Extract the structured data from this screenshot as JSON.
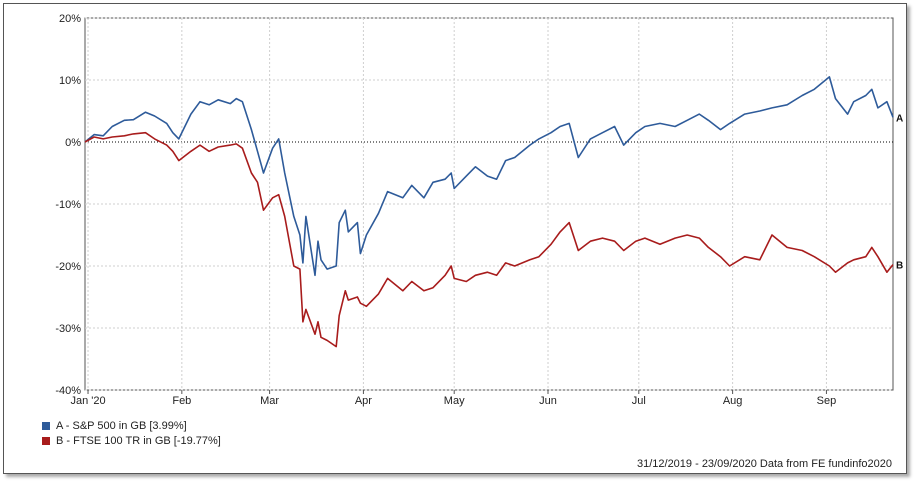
{
  "chart_data": {
    "type": "line",
    "xlabel": "",
    "ylabel": "",
    "ylim": [
      -40,
      20
    ],
    "yticks": [
      20,
      10,
      0,
      -10,
      -20,
      -30,
      -40
    ],
    "ytick_labels": [
      "20%",
      "10%",
      "0%",
      "-10%",
      "-20%",
      "-30%",
      "-40%"
    ],
    "xlim": [
      "2019-12-31",
      "2020-09-23"
    ],
    "xticks": [
      {
        "date": "2020-01-01",
        "label": "Jan '20"
      },
      {
        "date": "2020-02-01",
        "label": "Feb"
      },
      {
        "date": "2020-03-01",
        "label": "Mar"
      },
      {
        "date": "2020-04-01",
        "label": "Apr"
      },
      {
        "date": "2020-05-01",
        "label": "May"
      },
      {
        "date": "2020-06-01",
        "label": "Jun"
      },
      {
        "date": "2020-07-01",
        "label": "Jul"
      },
      {
        "date": "2020-08-01",
        "label": "Aug"
      },
      {
        "date": "2020-09-01",
        "label": "Sep"
      }
    ],
    "grid": true,
    "legend_position": "bottom-left",
    "series": [
      {
        "name": "A - S&P 500 in GB [3.99%]",
        "end_label": "A",
        "color": "#2e5b9a",
        "points": [
          [
            "2019-12-31",
            0
          ],
          [
            "2020-01-03",
            1.2
          ],
          [
            "2020-01-06",
            1.0
          ],
          [
            "2020-01-09",
            2.5
          ],
          [
            "2020-01-13",
            3.5
          ],
          [
            "2020-01-16",
            3.6
          ],
          [
            "2020-01-20",
            4.8
          ],
          [
            "2020-01-23",
            4.2
          ],
          [
            "2020-01-27",
            3.0
          ],
          [
            "2020-01-29",
            1.5
          ],
          [
            "2020-01-31",
            0.5
          ],
          [
            "2020-02-04",
            4.5
          ],
          [
            "2020-02-07",
            6.5
          ],
          [
            "2020-02-10",
            6.0
          ],
          [
            "2020-02-13",
            6.8
          ],
          [
            "2020-02-17",
            6.2
          ],
          [
            "2020-02-19",
            7.0
          ],
          [
            "2020-02-21",
            6.5
          ],
          [
            "2020-02-24",
            2.0
          ],
          [
            "2020-02-26",
            -1.5
          ],
          [
            "2020-02-28",
            -5.0
          ],
          [
            "2020-03-02",
            -1.0
          ],
          [
            "2020-03-04",
            0.5
          ],
          [
            "2020-03-06",
            -5.0
          ],
          [
            "2020-03-09",
            -12.0
          ],
          [
            "2020-03-11",
            -15.0
          ],
          [
            "2020-03-12",
            -19.5
          ],
          [
            "2020-03-13",
            -12.0
          ],
          [
            "2020-03-16",
            -21.5
          ],
          [
            "2020-03-17",
            -16.0
          ],
          [
            "2020-03-18",
            -19.0
          ],
          [
            "2020-03-20",
            -20.5
          ],
          [
            "2020-03-23",
            -20.0
          ],
          [
            "2020-03-24",
            -13.0
          ],
          [
            "2020-03-26",
            -11.0
          ],
          [
            "2020-03-27",
            -14.5
          ],
          [
            "2020-03-30",
            -13.0
          ],
          [
            "2020-03-31",
            -18.0
          ],
          [
            "2020-04-02",
            -15.0
          ],
          [
            "2020-04-06",
            -11.5
          ],
          [
            "2020-04-09",
            -8.0
          ],
          [
            "2020-04-14",
            -9.0
          ],
          [
            "2020-04-17",
            -7.0
          ],
          [
            "2020-04-21",
            -9.0
          ],
          [
            "2020-04-24",
            -6.5
          ],
          [
            "2020-04-28",
            -6.0
          ],
          [
            "2020-04-30",
            -5.0
          ],
          [
            "2020-05-01",
            -7.5
          ],
          [
            "2020-05-05",
            -5.5
          ],
          [
            "2020-05-08",
            -4.0
          ],
          [
            "2020-05-12",
            -5.5
          ],
          [
            "2020-05-15",
            -6.0
          ],
          [
            "2020-05-18",
            -3.0
          ],
          [
            "2020-05-21",
            -2.5
          ],
          [
            "2020-05-26",
            -0.5
          ],
          [
            "2020-05-29",
            0.5
          ],
          [
            "2020-06-02",
            1.5
          ],
          [
            "2020-06-05",
            2.5
          ],
          [
            "2020-06-08",
            3.0
          ],
          [
            "2020-06-11",
            -2.5
          ],
          [
            "2020-06-15",
            0.5
          ],
          [
            "2020-06-19",
            1.5
          ],
          [
            "2020-06-23",
            2.5
          ],
          [
            "2020-06-26",
            -0.5
          ],
          [
            "2020-06-30",
            1.5
          ],
          [
            "2020-07-03",
            2.5
          ],
          [
            "2020-07-08",
            3.0
          ],
          [
            "2020-07-13",
            2.5
          ],
          [
            "2020-07-17",
            3.5
          ],
          [
            "2020-07-21",
            4.5
          ],
          [
            "2020-07-24",
            3.5
          ],
          [
            "2020-07-28",
            2.0
          ],
          [
            "2020-07-31",
            3.0
          ],
          [
            "2020-08-05",
            4.5
          ],
          [
            "2020-08-10",
            5.0
          ],
          [
            "2020-08-14",
            5.5
          ],
          [
            "2020-08-19",
            6.0
          ],
          [
            "2020-08-24",
            7.5
          ],
          [
            "2020-08-28",
            8.5
          ],
          [
            "2020-09-02",
            10.5
          ],
          [
            "2020-09-04",
            7.0
          ],
          [
            "2020-09-08",
            4.5
          ],
          [
            "2020-09-10",
            6.5
          ],
          [
            "2020-09-14",
            7.5
          ],
          [
            "2020-09-16",
            8.5
          ],
          [
            "2020-09-18",
            5.5
          ],
          [
            "2020-09-21",
            6.5
          ],
          [
            "2020-09-23",
            3.99
          ]
        ]
      },
      {
        "name": "B - FTSE 100 TR in GB [-19.77%]",
        "end_label": "B",
        "color": "#a81c1c",
        "points": [
          [
            "2019-12-31",
            0
          ],
          [
            "2020-01-03",
            0.8
          ],
          [
            "2020-01-06",
            0.5
          ],
          [
            "2020-01-09",
            0.8
          ],
          [
            "2020-01-13",
            1.0
          ],
          [
            "2020-01-16",
            1.3
          ],
          [
            "2020-01-20",
            1.5
          ],
          [
            "2020-01-23",
            0.5
          ],
          [
            "2020-01-27",
            -0.5
          ],
          [
            "2020-01-29",
            -1.5
          ],
          [
            "2020-01-31",
            -3.0
          ],
          [
            "2020-02-04",
            -1.5
          ],
          [
            "2020-02-07",
            -0.5
          ],
          [
            "2020-02-10",
            -1.5
          ],
          [
            "2020-02-13",
            -0.8
          ],
          [
            "2020-02-17",
            -0.5
          ],
          [
            "2020-02-19",
            -0.3
          ],
          [
            "2020-02-21",
            -1.0
          ],
          [
            "2020-02-24",
            -5.0
          ],
          [
            "2020-02-26",
            -6.5
          ],
          [
            "2020-02-28",
            -11.0
          ],
          [
            "2020-03-02",
            -9.0
          ],
          [
            "2020-03-04",
            -8.5
          ],
          [
            "2020-03-06",
            -12.0
          ],
          [
            "2020-03-09",
            -20.0
          ],
          [
            "2020-03-11",
            -20.5
          ],
          [
            "2020-03-12",
            -29.0
          ],
          [
            "2020-03-13",
            -27.0
          ],
          [
            "2020-03-16",
            -31.0
          ],
          [
            "2020-03-17",
            -29.0
          ],
          [
            "2020-03-18",
            -31.5
          ],
          [
            "2020-03-20",
            -32.0
          ],
          [
            "2020-03-23",
            -33.0
          ],
          [
            "2020-03-24",
            -28.0
          ],
          [
            "2020-03-26",
            -24.0
          ],
          [
            "2020-03-27",
            -25.5
          ],
          [
            "2020-03-30",
            -25.0
          ],
          [
            "2020-03-31",
            -26.0
          ],
          [
            "2020-04-02",
            -26.5
          ],
          [
            "2020-04-06",
            -24.5
          ],
          [
            "2020-04-09",
            -22.0
          ],
          [
            "2020-04-14",
            -24.0
          ],
          [
            "2020-04-17",
            -22.5
          ],
          [
            "2020-04-21",
            -24.0
          ],
          [
            "2020-04-24",
            -23.5
          ],
          [
            "2020-04-28",
            -21.5
          ],
          [
            "2020-04-30",
            -20.0
          ],
          [
            "2020-05-01",
            -22.0
          ],
          [
            "2020-05-05",
            -22.5
          ],
          [
            "2020-05-08",
            -21.5
          ],
          [
            "2020-05-12",
            -21.0
          ],
          [
            "2020-05-15",
            -21.5
          ],
          [
            "2020-05-18",
            -19.5
          ],
          [
            "2020-05-21",
            -20.0
          ],
          [
            "2020-05-26",
            -19.0
          ],
          [
            "2020-05-29",
            -18.5
          ],
          [
            "2020-06-02",
            -16.5
          ],
          [
            "2020-06-05",
            -14.5
          ],
          [
            "2020-06-08",
            -13.0
          ],
          [
            "2020-06-11",
            -17.5
          ],
          [
            "2020-06-15",
            -16.0
          ],
          [
            "2020-06-19",
            -15.5
          ],
          [
            "2020-06-23",
            -16.0
          ],
          [
            "2020-06-26",
            -17.5
          ],
          [
            "2020-06-30",
            -16.0
          ],
          [
            "2020-07-03",
            -15.5
          ],
          [
            "2020-07-08",
            -16.5
          ],
          [
            "2020-07-13",
            -15.5
          ],
          [
            "2020-07-17",
            -15.0
          ],
          [
            "2020-07-21",
            -15.5
          ],
          [
            "2020-07-24",
            -17.0
          ],
          [
            "2020-07-28",
            -18.5
          ],
          [
            "2020-07-31",
            -20.0
          ],
          [
            "2020-08-05",
            -18.5
          ],
          [
            "2020-08-10",
            -19.0
          ],
          [
            "2020-08-14",
            -15.0
          ],
          [
            "2020-08-19",
            -17.0
          ],
          [
            "2020-08-24",
            -17.5
          ],
          [
            "2020-08-28",
            -18.5
          ],
          [
            "2020-09-02",
            -20.0
          ],
          [
            "2020-09-04",
            -21.0
          ],
          [
            "2020-09-08",
            -19.5
          ],
          [
            "2020-09-10",
            -19.0
          ],
          [
            "2020-09-14",
            -18.5
          ],
          [
            "2020-09-16",
            -17.0
          ],
          [
            "2020-09-18",
            -18.5
          ],
          [
            "2020-09-21",
            -21.0
          ],
          [
            "2020-09-23",
            -19.77
          ]
        ]
      }
    ]
  },
  "footer": {
    "text": "31/12/2019 - 23/09/2020 Data from FE fundinfo2020"
  }
}
